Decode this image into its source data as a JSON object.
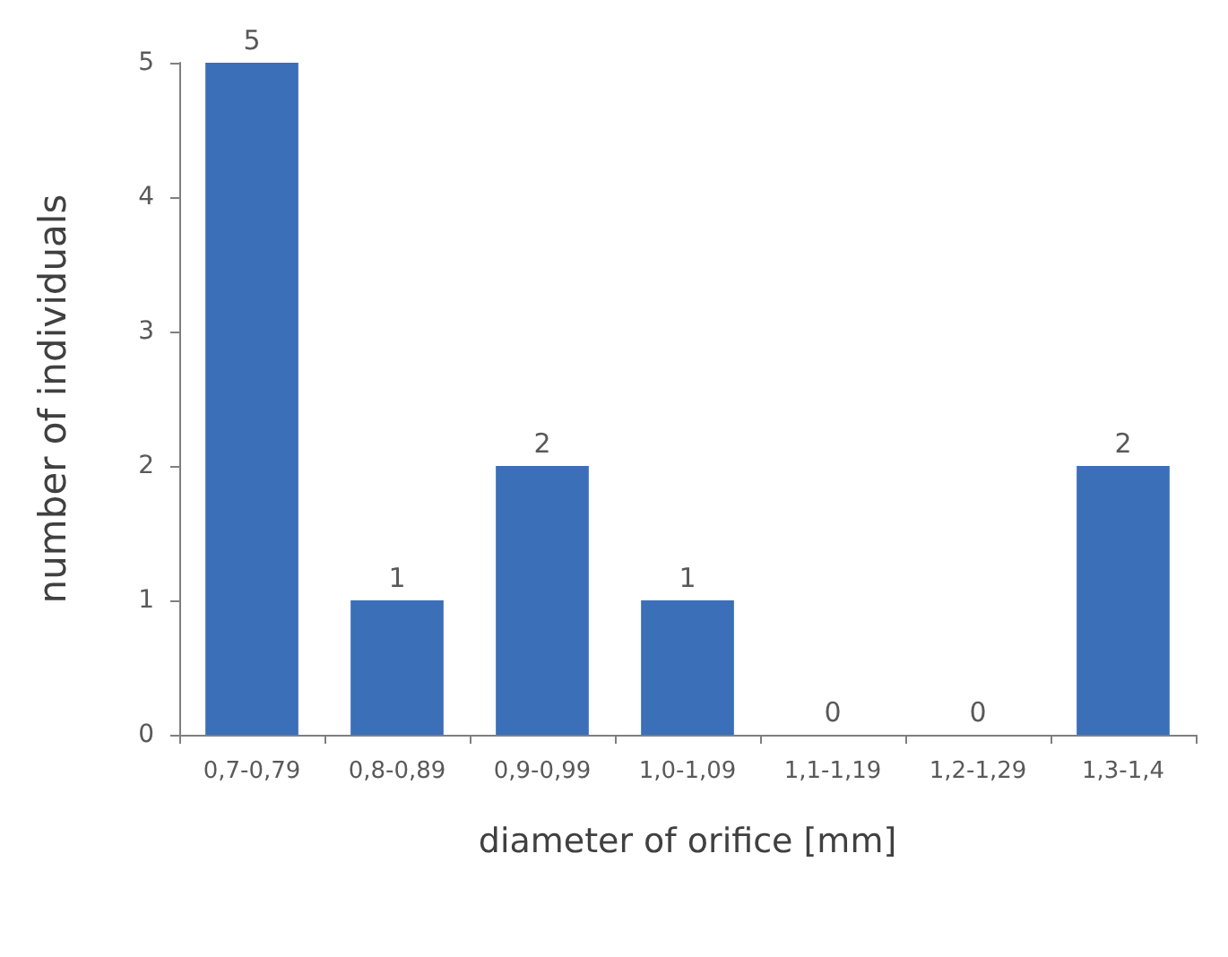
{
  "chart_data": {
    "type": "bar",
    "xlabel": "diameter of orifice [mm]",
    "ylabel": "number of individuals",
    "categories": [
      "0,7-0,79",
      "0,8-0,89",
      "0,9-0,99",
      "1,0-1,09",
      "1,1-1,19",
      "1,2-1,29",
      "1,3-1,4"
    ],
    "values": [
      5,
      1,
      2,
      1,
      0,
      0,
      2
    ],
    "color": "#3b6fb8",
    "ylim": [
      0,
      5
    ],
    "yticks": [
      0,
      1,
      2,
      3,
      4,
      5
    ],
    "grid": false,
    "data_labels": true
  }
}
